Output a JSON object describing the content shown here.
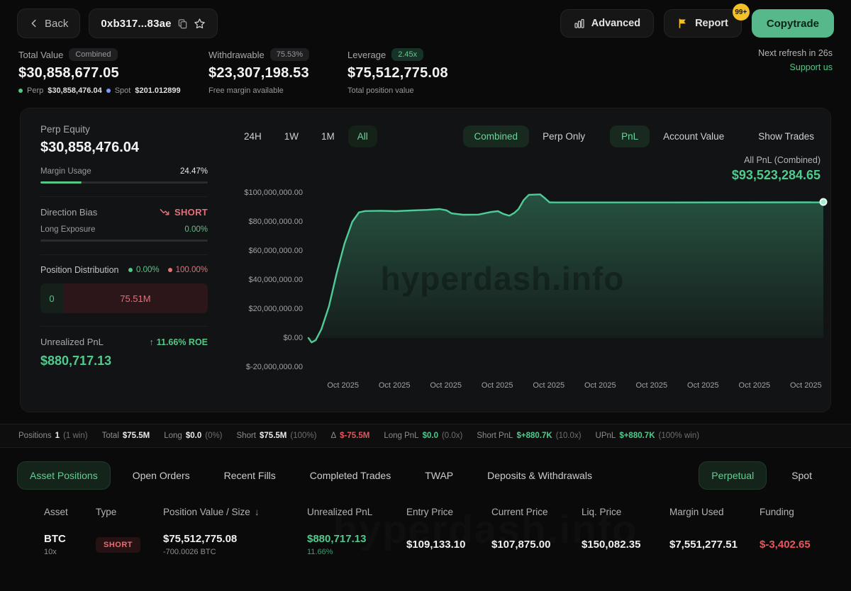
{
  "colors": {
    "accent_green": "#57c787",
    "value_green": "#4ecb8d",
    "red": "#e5565e",
    "yellow": "#f2c028",
    "spot_blue": "#7b9bff",
    "chart_line": "#4ecb97"
  },
  "topbar": {
    "back_label": "Back",
    "address": "0xb317...83ae",
    "advanced_label": "Advanced",
    "report_label": "Report",
    "report_badge": "99+",
    "copytrade_label": "Copytrade"
  },
  "stats": {
    "total": {
      "label": "Total Value",
      "badge": "Combined",
      "value": "$30,858,677.05",
      "perp_label": "Perp",
      "perp_value": "$30,858,476.04",
      "spot_label": "Spot",
      "spot_value": "$201.012899"
    },
    "withdrawable": {
      "label": "Withdrawable",
      "badge": "75.53%",
      "value": "$23,307,198.53",
      "sub": "Free margin available"
    },
    "leverage": {
      "label": "Leverage",
      "badge": "2.45x",
      "value": "$75,512,775.08",
      "sub": "Total position value"
    },
    "refresh": "Next refresh in 26s",
    "support": "Support us"
  },
  "panel": {
    "perp_equity_label": "Perp Equity",
    "perp_equity_value": "$30,858,476.04",
    "margin_usage_label": "Margin Usage",
    "margin_usage_value": "24.47%",
    "margin_usage_pct": 24.47,
    "direction_label": "Direction Bias",
    "direction_value": "SHORT",
    "long_exposure_label": "Long Exposure",
    "long_exposure_value": "0.00%",
    "long_exposure_pct": 0,
    "distribution_label": "Position Distribution",
    "distribution_long_pct": "0.00%",
    "distribution_short_pct": "100.00%",
    "distribution_long_amount": "0",
    "distribution_short_amount": "75.51M",
    "unrealized_label": "Unrealized PnL",
    "unrealized_roe": "11.66% ROE",
    "unrealized_value": "$880,717.13"
  },
  "chart": {
    "ranges": [
      "24H",
      "1W",
      "1M",
      "All"
    ],
    "selected_range": "All",
    "scope_options": [
      "Combined",
      "Perp Only"
    ],
    "selected_scope": "Combined",
    "metric_options": [
      "PnL",
      "Account Value"
    ],
    "selected_metric": "PnL",
    "show_trades_label": "Show Trades",
    "readout_label": "All PnL (Combined)",
    "readout_value": "$93,523,284.65",
    "watermark": "hyperdash.info"
  },
  "chart_data": {
    "type": "area",
    "title": "All PnL (Combined)",
    "unit": "USD (millions)",
    "ylim": [
      -20,
      100
    ],
    "grid": false,
    "legend": false,
    "final_value": 93.52,
    "final_value_label": "$93,523,284.65",
    "yticks": [
      {
        "label": "$100,000,000.00",
        "value": 100
      },
      {
        "label": "$80,000,000.00",
        "value": 80
      },
      {
        "label": "$60,000,000.00",
        "value": 60
      },
      {
        "label": "$40,000,000.00",
        "value": 40
      },
      {
        "label": "$20,000,000.00",
        "value": 20
      },
      {
        "label": "$0.00",
        "value": 0
      },
      {
        "label": "$-20,000,000.00",
        "value": -20
      }
    ],
    "xticks": [
      "Oct 2025",
      "Oct 2025",
      "Oct 2025",
      "Oct 2025",
      "Oct 2025",
      "Oct 2025",
      "Oct 2025",
      "Oct 2025",
      "Oct 2025",
      "Oct 2025"
    ],
    "points": [
      [
        0.0,
        0.0
      ],
      [
        0.006,
        -3.0
      ],
      [
        0.014,
        -1.5
      ],
      [
        0.025,
        6.0
      ],
      [
        0.04,
        22.0
      ],
      [
        0.055,
        45.0
      ],
      [
        0.07,
        65.0
      ],
      [
        0.085,
        80.0
      ],
      [
        0.098,
        86.5
      ],
      [
        0.11,
        87.4
      ],
      [
        0.14,
        87.6
      ],
      [
        0.17,
        87.3
      ],
      [
        0.2,
        87.8
      ],
      [
        0.23,
        88.2
      ],
      [
        0.255,
        88.8
      ],
      [
        0.268,
        87.9
      ],
      [
        0.278,
        85.8
      ],
      [
        0.3,
        84.9
      ],
      [
        0.33,
        85.0
      ],
      [
        0.355,
        86.8
      ],
      [
        0.368,
        87.3
      ],
      [
        0.378,
        85.5
      ],
      [
        0.39,
        84.2
      ],
      [
        0.4,
        86.2
      ],
      [
        0.408,
        88.8
      ],
      [
        0.418,
        95.0
      ],
      [
        0.428,
        98.6
      ],
      [
        0.45,
        98.9
      ],
      [
        0.46,
        96.0
      ],
      [
        0.468,
        93.4
      ],
      [
        0.48,
        93.3
      ],
      [
        0.7,
        93.3
      ],
      [
        0.995,
        93.4
      ],
      [
        1.0,
        93.52
      ]
    ]
  },
  "summary": {
    "segments": [
      {
        "label": "Positions",
        "value": "1",
        "extra": "(1 win)",
        "tone": ""
      },
      {
        "label": "Total",
        "value": "$75.5M",
        "extra": "",
        "tone": ""
      },
      {
        "label": "Long",
        "value": "$0.0",
        "extra": "(0%)",
        "tone": ""
      },
      {
        "label": "Short",
        "value": "$75.5M",
        "extra": "(100%)",
        "tone": ""
      },
      {
        "label": "Δ",
        "value": "$-75.5M",
        "extra": "",
        "tone": "red"
      },
      {
        "label": "Long PnL",
        "value": "$0.0",
        "extra": "(0.0x)",
        "tone": "green"
      },
      {
        "label": "Short PnL",
        "value": "$+880.7K",
        "extra": "(10.0x)",
        "tone": "green"
      },
      {
        "label": "UPnL",
        "value": "$+880.7K",
        "extra": "(100% win)",
        "tone": "green"
      }
    ]
  },
  "bottom": {
    "tabs": [
      "Asset Positions",
      "Open Orders",
      "Recent Fills",
      "Completed Trades",
      "TWAP",
      "Deposits & Withdrawals"
    ],
    "selected_tab": "Asset Positions",
    "market_tabs": [
      "Perpetual",
      "Spot"
    ],
    "selected_market": "Perpetual"
  },
  "table": {
    "headers": [
      "Asset",
      "Type",
      "Position Value / Size",
      "Unrealized PnL",
      "Entry Price",
      "Current Price",
      "Liq. Price",
      "Margin Used",
      "Funding"
    ],
    "sort_column": "Position Value / Size",
    "sort_icon": "↓",
    "rows": [
      {
        "asset": "BTC",
        "leverage": "10x",
        "type": "SHORT",
        "value": "$75,512,775.08",
        "size": "-700.0026 BTC",
        "upnl": "$880,717.13",
        "upnl_pct": "11.66%",
        "entry": "$109,133.10",
        "current": "$107,875.00",
        "liq": "$150,082.35",
        "margin": "$7,551,277.51",
        "funding": "$-3,402.65"
      }
    ]
  }
}
